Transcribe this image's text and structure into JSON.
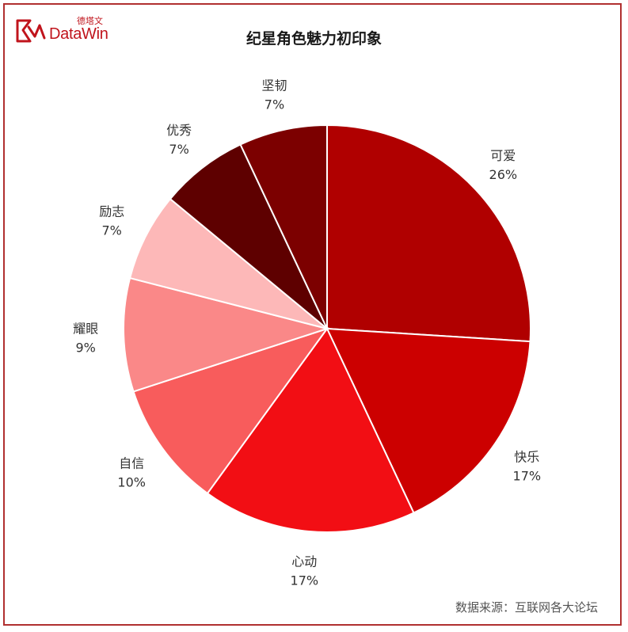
{
  "header": {
    "logo_cn": "德塔文",
    "logo_en": "DataWin",
    "brand_color": "#c0141c"
  },
  "footer": {
    "source": "数据来源：互联网各大论坛"
  },
  "chart_data": {
    "type": "pie",
    "title": "纪星角色魅力初印象",
    "start_angle": "12 o'clock",
    "direction": "clockwise",
    "slices": [
      {
        "label": "可爱",
        "value": 26,
        "display": "26%",
        "color": "#b00000"
      },
      {
        "label": "快乐",
        "value": 17,
        "display": "17%",
        "color": "#cc0000"
      },
      {
        "label": "心动",
        "value": 17,
        "display": "17%",
        "color": "#f20e14"
      },
      {
        "label": "自信",
        "value": 10,
        "display": "10%",
        "color": "#f85c5c"
      },
      {
        "label": "耀眼",
        "value": 9,
        "display": "9%",
        "color": "#fa8888"
      },
      {
        "label": "励志",
        "value": 7,
        "display": "7%",
        "color": "#fdb8b8"
      },
      {
        "label": "优秀",
        "value": 7,
        "display": "7%",
        "color": "#5e0000"
      },
      {
        "label": "坚韧",
        "value": 7,
        "display": "7%",
        "color": "#7c0000"
      }
    ]
  }
}
